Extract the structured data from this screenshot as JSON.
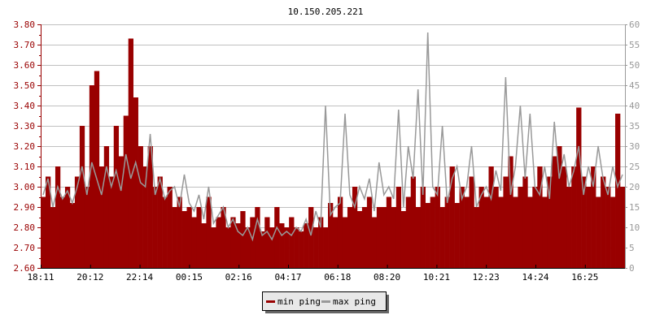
{
  "chart_data": {
    "type": "bar",
    "title": "10.150.205.221",
    "x_tick_labels": [
      "18:11",
      "20:12",
      "22:14",
      "00:15",
      "02:16",
      "04:17",
      "06:18",
      "08:20",
      "10:21",
      "12:23",
      "14:24",
      "16:25"
    ],
    "y_left": {
      "ylim": [
        2.6,
        3.8
      ],
      "ticks": [
        "2.60",
        "2.70",
        "2.80",
        "2.90",
        "3.00",
        "3.10",
        "3.20",
        "3.30",
        "3.40",
        "3.50",
        "3.60",
        "3.70",
        "3.80"
      ],
      "color": "#990000"
    },
    "y_right": {
      "ylim": [
        0,
        60
      ],
      "ticks": [
        "0",
        "5",
        "10",
        "15",
        "20",
        "25",
        "30",
        "35",
        "40",
        "45",
        "50",
        "55",
        "60"
      ],
      "color": "#999999"
    },
    "grid": true,
    "legend": {
      "placement": "bottom-center"
    },
    "series": [
      {
        "name": "min ping",
        "axis": "left",
        "color": "#990000",
        "style": "bars",
        "values": [
          2.95,
          3.05,
          2.9,
          3.1,
          2.95,
          3.0,
          2.92,
          3.05,
          3.3,
          3.0,
          3.5,
          3.57,
          3.1,
          3.2,
          3.05,
          3.3,
          3.15,
          3.35,
          3.73,
          3.44,
          3.2,
          3.1,
          3.2,
          3.0,
          3.05,
          2.95,
          3.0,
          2.9,
          2.95,
          2.88,
          2.9,
          2.85,
          2.9,
          2.82,
          2.95,
          2.8,
          2.85,
          2.9,
          2.8,
          2.85,
          2.82,
          2.88,
          2.8,
          2.85,
          2.9,
          2.78,
          2.85,
          2.8,
          2.9,
          2.82,
          2.8,
          2.85,
          2.8,
          2.78,
          2.82,
          2.9,
          2.8,
          2.85,
          2.8,
          2.92,
          2.85,
          2.95,
          2.85,
          2.9,
          3.0,
          2.88,
          2.9,
          2.95,
          2.85,
          2.9,
          2.9,
          2.95,
          2.9,
          3.0,
          2.88,
          2.95,
          3.05,
          2.9,
          3.0,
          2.92,
          2.95,
          3.0,
          2.9,
          2.95,
          3.1,
          2.92,
          3.0,
          2.95,
          3.05,
          2.9,
          3.0,
          2.95,
          3.1,
          3.0,
          2.95,
          3.05,
          3.15,
          2.95,
          3.0,
          3.05,
          2.95,
          3.0,
          3.1,
          2.95,
          3.05,
          3.15,
          3.2,
          3.1,
          3.0,
          3.1,
          3.39,
          3.05,
          3.0,
          3.1,
          2.95,
          3.05,
          3.0,
          2.95,
          3.36,
          3.0
        ]
      },
      {
        "name": "max ping",
        "axis": "right",
        "color": "#999999",
        "style": "line",
        "values": [
          18,
          22,
          15,
          20,
          17,
          19,
          16,
          20,
          25,
          18,
          26,
          22,
          18,
          25,
          20,
          24,
          19,
          28,
          22,
          26,
          21,
          20,
          33,
          18,
          22,
          17,
          19,
          20,
          15,
          23,
          16,
          14,
          18,
          12,
          20,
          11,
          13,
          15,
          10,
          12,
          9,
          8,
          10,
          7,
          12,
          8,
          9,
          7,
          10,
          8,
          9,
          8,
          10,
          9,
          12,
          8,
          14,
          10,
          40,
          13,
          15,
          16,
          38,
          18,
          15,
          20,
          17,
          22,
          14,
          26,
          18,
          20,
          17,
          39,
          15,
          30,
          22,
          44,
          18,
          58,
          20,
          18,
          35,
          16,
          22,
          25,
          17,
          20,
          30,
          15,
          18,
          20,
          17,
          24,
          19,
          47,
          18,
          25,
          40,
          22,
          38,
          20,
          18,
          25,
          17,
          36,
          22,
          28,
          20,
          24,
          30,
          18,
          25,
          20,
          30,
          22,
          18,
          25,
          20,
          23
        ]
      }
    ]
  }
}
